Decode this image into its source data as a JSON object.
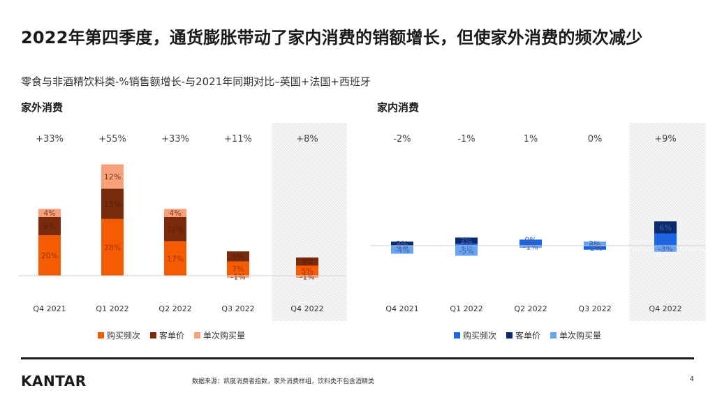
{
  "title": "2022年第四季度，通货膨胀带动了家内消费的销额增长，但使家外消费的频次减少",
  "subtitle": "零食与非酒精饮料类-%销售额增长-与2021年同期对比–英国+法国+西班牙",
  "footer": {
    "logo": "KANTAR",
    "source": "数据来源：凯度消费者指数，家外消费样组，饮料类不包含酒精类",
    "page": "4"
  },
  "chart_data": [
    {
      "type": "bar",
      "stacked": true,
      "title": "家外消费",
      "categories": [
        "Q4 2021",
        "Q1 2022",
        "Q2 2022",
        "Q3 2022",
        "Q4 2022"
      ],
      "totals": [
        "+33%",
        "+55%",
        "+33%",
        "+11%",
        "+8%"
      ],
      "highlight_category": "Q4 2022",
      "series": [
        {
          "name": "购买频次",
          "color": "#f55b00",
          "values": [
            20,
            28,
            17,
            7,
            5
          ]
        },
        {
          "name": "客单价",
          "color": "#7a2a0b",
          "values": [
            9,
            15,
            12,
            5,
            4
          ]
        },
        {
          "name": "单次购买量",
          "color": "#f7a07a",
          "values": [
            4,
            12,
            4,
            -1,
            -1
          ]
        }
      ],
      "labels": [
        [
          "20%",
          "28%",
          "17%",
          "7%",
          "5%"
        ],
        [
          "9%",
          "15%",
          "12%",
          "5%",
          "4%"
        ],
        [
          "4%",
          "12%",
          "4%",
          "-1%",
          "-1%"
        ]
      ]
    },
    {
      "type": "bar",
      "stacked": true,
      "title": "家内消费",
      "categories": [
        "Q4 2021",
        "Q1 2022",
        "Q2 2022",
        "Q3 2022",
        "Q4 2022"
      ],
      "totals": [
        "-2%",
        "-1%",
        "1%",
        "0%",
        "+9%"
      ],
      "highlight_category": "Q4 2022",
      "series": [
        {
          "name": "购买频次",
          "color": "#1a66ea",
          "values": [
            0,
            1,
            3,
            -2,
            6
          ]
        },
        {
          "name": "客单价",
          "color": "#0b2a6e",
          "values": [
            2,
            3,
            0,
            0,
            6
          ]
        },
        {
          "name": "单次购买量",
          "color": "#6aa3f0",
          "values": [
            -4,
            -5,
            -1,
            2,
            -3
          ]
        }
      ],
      "labels": [
        [
          "0%",
          "1%",
          "3%",
          "-2%",
          "6%"
        ],
        [
          "2%",
          "3%",
          "0%",
          "0%",
          "6%"
        ],
        [
          "-4%",
          "-5%",
          "-1%",
          "2%",
          "-3%"
        ]
      ]
    }
  ]
}
